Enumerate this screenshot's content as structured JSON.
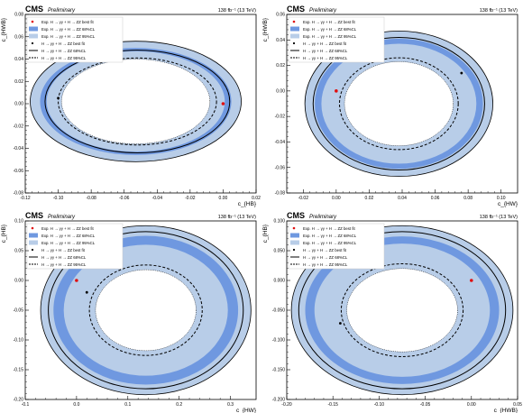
{
  "colors": {
    "band68": "#6f98e0",
    "band95": "#b8cde8",
    "solid_contour": "#000000",
    "best_fit_marker": "#e01010",
    "frame": "#000000"
  },
  "chart_data": [
    {
      "type": "contour",
      "experiment": "CMS",
      "status": "Preliminary",
      "lumi": "138 fb⁻¹ (13 TeV)",
      "xlabel": "c_{HB}",
      "ylabel": "c_{HWB}",
      "xlim": [
        -0.12,
        0.02
      ],
      "ylim": [
        -0.08,
        0.08
      ],
      "xticks": [
        "-0.12",
        "-0.10",
        "-0.08",
        "-0.06",
        "-0.04",
        "-0.02",
        "0.00",
        "0.02"
      ],
      "yticks": [
        "-0.08",
        "-0.06",
        "-0.04",
        "-0.02",
        "0.00",
        "0.02",
        "0.04",
        "0.06",
        "0.08"
      ],
      "legend": [
        "Exp. H → γγ + H → ZZ best fit",
        "Exp. H → γγ + H → ZZ 68%CL",
        "Exp. H → γγ + H → ZZ 95%CL",
        "H → γγ + H → ZZ best fit",
        "H → γγ + H → ZZ 68%CL",
        "H → γγ + H → ZZ 95%CL"
      ],
      "legend_loc": "top-left",
      "ellipse": {
        "center": [
          -0.053,
          0.002
        ],
        "rx": [
          0.045,
          0.054,
          0.058,
          0.064
        ],
        "ry": [
          0.038,
          0.045,
          0.048,
          0.054
        ],
        "rotation_deg": 0
      },
      "obs_contours": {
        "center": [
          -0.052,
          0.002
        ],
        "rx": [
          0.056,
          0.048
        ],
        "ry": [
          0.046,
          0.039
        ],
        "dashed": [
          false,
          true
        ]
      },
      "expected_best_fit": [
        0.0,
        0.0
      ],
      "observed_best_fit": [
        -0.1,
        0.005
      ]
    },
    {
      "type": "contour",
      "experiment": "CMS",
      "status": "Preliminary",
      "lumi": "138 fb⁻¹ (13 TeV)",
      "xlabel": "c_{HW}",
      "ylabel": "c_{HWB}",
      "xlim": [
        -0.03,
        0.11
      ],
      "ylim": [
        -0.08,
        0.06
      ],
      "xticks": [
        "-0.02",
        "0.00",
        "0.02",
        "0.04",
        "0.06",
        "0.08",
        "0.10"
      ],
      "yticks": [
        "-0.08",
        "-0.06",
        "-0.04",
        "-0.02",
        "0.00",
        "0.02",
        "0.04",
        "0.06"
      ],
      "legend": [
        "Exp. H → γγ + H → ZZ best fit",
        "Exp. H → γγ + H → ZZ 68%CL",
        "Exp. H → γγ + H → ZZ 95%CL",
        "H → γγ + H → ZZ best fit",
        "H → γγ + H → ZZ 68%CL",
        "H → γγ + H → ZZ 95%CL"
      ],
      "legend_loc": "top-left",
      "ellipse": {
        "center": [
          0.038,
          -0.01
        ],
        "rx": [
          0.033,
          0.047,
          0.051,
          0.057
        ],
        "ry": [
          0.033,
          0.047,
          0.051,
          0.057
        ],
        "rotation_deg": 0
      },
      "obs_contours": {
        "center": [
          0.038,
          -0.01
        ],
        "rx": [
          0.052,
          0.036
        ],
        "ry": [
          0.052,
          0.036
        ],
        "dashed": [
          false,
          true
        ]
      },
      "expected_best_fit": [
        0.0,
        0.0
      ],
      "observed_best_fit": [
        0.076,
        0.014
      ]
    },
    {
      "type": "contour",
      "experiment": "CMS",
      "status": "Preliminary",
      "lumi": "138 fb⁻¹ (13 TeV)",
      "xlabel": "c_{HW}",
      "ylabel": "c_{HB}",
      "xlim": [
        -0.1,
        0.35
      ],
      "ylim": [
        -0.2,
        0.1
      ],
      "xticks": [
        "-0.1",
        "0.0",
        "0.1",
        "0.2",
        "0.3"
      ],
      "yticks": [
        "-0.20",
        "-0.15",
        "-0.10",
        "-0.05",
        "0.00",
        "0.05",
        "0.10"
      ],
      "legend": [
        "Exp. H → γγ + H → ZZ best fit",
        "Exp. H → γγ + H → ZZ 68%CL",
        "Exp. H → γγ + H → ZZ 95%CL",
        "H → γγ + H → ZZ best fit",
        "H → γγ + H → ZZ 68%CL",
        "H → γγ + H → ZZ 95%CL"
      ],
      "legend_loc": "top-left",
      "ellipse": {
        "center": [
          0.135,
          -0.05
        ],
        "rx": [
          0.098,
          0.16,
          0.18,
          0.205
        ],
        "ry": [
          0.068,
          0.11,
          0.125,
          0.142
        ],
        "rotation_deg": 0
      },
      "obs_contours": {
        "center": [
          0.135,
          -0.05
        ],
        "rx": [
          0.19,
          0.11
        ],
        "ry": [
          0.132,
          0.076
        ],
        "dashed": [
          false,
          true
        ]
      },
      "expected_best_fit": [
        0.0,
        0.0
      ],
      "observed_best_fit": [
        0.02,
        -0.02
      ]
    },
    {
      "type": "contour",
      "experiment": "CMS",
      "status": "Preliminary",
      "lumi": "138 fb⁻¹ (13 TeV)",
      "xlabel": "c_{HWB}",
      "ylabel": "c_{HB}",
      "xlim": [
        -0.2,
        0.05
      ],
      "ylim": [
        -0.2,
        0.1
      ],
      "xticks": [
        "-0.20",
        "-0.15",
        "-0.10",
        "-0.05",
        "0.00",
        "0.05"
      ],
      "yticks": [
        "-0.200",
        "-0.150",
        "-0.100",
        "-0.050",
        "0.000",
        "0.050",
        "0.100"
      ],
      "legend": [
        "Exp. H → γγ + H → ZZ best fit",
        "Exp. H → γγ + H → ZZ 68%CL",
        "Exp. H → γγ + H → ZZ 95%CL",
        "H → γγ + H → ZZ best fit",
        "H → γγ + H → ZZ 68%CL",
        "H → γγ + H → ZZ 95%CL"
      ],
      "legend_loc": "top-left",
      "ellipse": {
        "center": [
          -0.075,
          -0.05
        ],
        "rx": [
          0.06,
          0.095,
          0.105,
          0.12
        ],
        "ry": [
          0.07,
          0.112,
          0.124,
          0.142
        ],
        "rotation_deg": 0
      },
      "obs_contours": {
        "center": [
          -0.075,
          -0.05
        ],
        "rx": [
          0.112,
          0.066
        ],
        "ry": [
          0.132,
          0.078
        ],
        "dashed": [
          false,
          true
        ]
      },
      "expected_best_fit": [
        0.0,
        0.0
      ],
      "observed_best_fit": [
        -0.142,
        -0.072
      ]
    }
  ]
}
